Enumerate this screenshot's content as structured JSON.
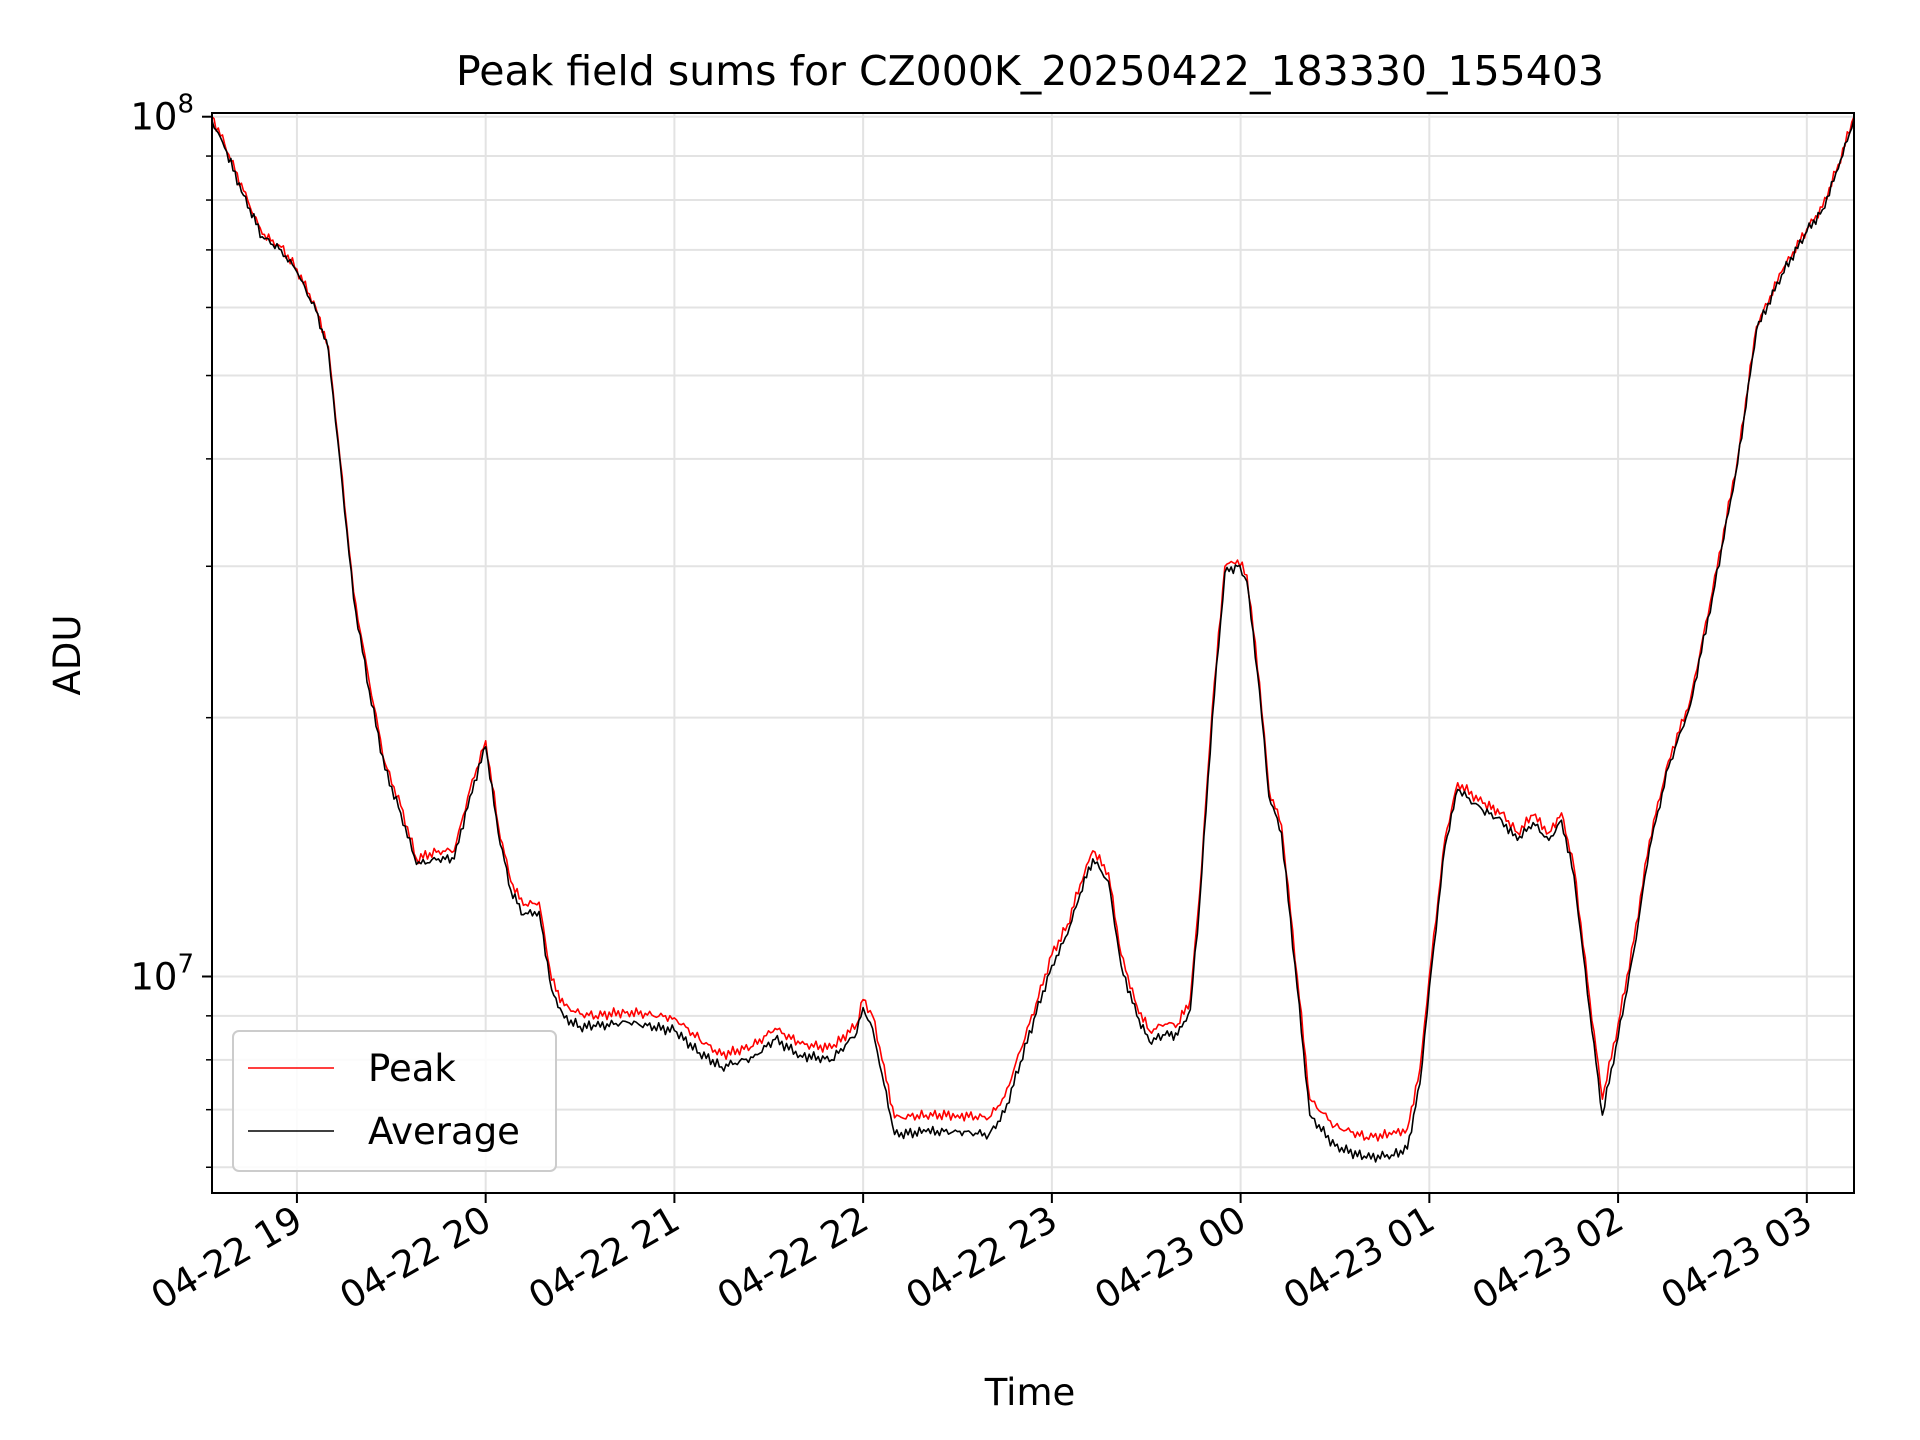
{
  "chart_data": {
    "type": "line",
    "title": "Peak field sums for CZ000K_20250422_183330_155403",
    "xlabel": "Time",
    "ylabel": "ADU",
    "yscale": "log",
    "ylim": [
      5600000,
      101000000
    ],
    "xlim": [
      "2025-04-22 18:33",
      "2025-04-23 03:15"
    ],
    "x_ticks": [
      {
        "t": "2025-04-22 19:00",
        "label": "04-22 19"
      },
      {
        "t": "2025-04-22 20:00",
        "label": "04-22 20"
      },
      {
        "t": "2025-04-22 21:00",
        "label": "04-22 21"
      },
      {
        "t": "2025-04-22 22:00",
        "label": "04-22 22"
      },
      {
        "t": "2025-04-22 23:00",
        "label": "04-22 23"
      },
      {
        "t": "2025-04-23 00:00",
        "label": "04-23 00"
      },
      {
        "t": "2025-04-23 01:00",
        "label": "04-23 01"
      },
      {
        "t": "2025-04-23 02:00",
        "label": "04-23 02"
      },
      {
        "t": "2025-04-23 03:00",
        "label": "04-23 03"
      }
    ],
    "y_ticks": [
      {
        "value": 10000000,
        "base": "10",
        "exp": "7"
      },
      {
        "value": 100000000,
        "base": "10",
        "exp": "8"
      }
    ],
    "grid": true,
    "legend": "lower-left",
    "series": [
      {
        "name": "Peak",
        "color": "#ff0000",
        "x": [
          "2025-04-22 18:33",
          "2025-04-22 18:37",
          "2025-04-22 18:43",
          "2025-04-22 18:49",
          "2025-04-22 18:55",
          "2025-04-22 19:00",
          "2025-04-22 19:06",
          "2025-04-22 19:10",
          "2025-04-22 19:13",
          "2025-04-22 19:18",
          "2025-04-22 19:23",
          "2025-04-22 19:28",
          "2025-04-22 19:33",
          "2025-04-22 19:38",
          "2025-04-22 19:45",
          "2025-04-22 19:50",
          "2025-04-22 19:55",
          "2025-04-22 20:00",
          "2025-04-22 20:04",
          "2025-04-22 20:08",
          "2025-04-22 20:12",
          "2025-04-22 20:17",
          "2025-04-22 20:21",
          "2025-04-22 20:25",
          "2025-04-22 20:30",
          "2025-04-22 20:35",
          "2025-04-22 20:45",
          "2025-04-22 21:00",
          "2025-04-22 21:08",
          "2025-04-22 21:15",
          "2025-04-22 21:25",
          "2025-04-22 21:32",
          "2025-04-22 21:40",
          "2025-04-22 21:50",
          "2025-04-22 21:58",
          "2025-04-22 22:00",
          "2025-04-22 22:03",
          "2025-04-22 22:06",
          "2025-04-22 22:10",
          "2025-04-22 22:20",
          "2025-04-22 22:30",
          "2025-04-22 22:40",
          "2025-04-22 22:45",
          "2025-04-22 22:50",
          "2025-04-22 22:55",
          "2025-04-22 23:00",
          "2025-04-22 23:05",
          "2025-04-22 23:09",
          "2025-04-22 23:13",
          "2025-04-22 23:18",
          "2025-04-22 23:22",
          "2025-04-22 23:27",
          "2025-04-22 23:31",
          "2025-04-22 23:36",
          "2025-04-22 23:40",
          "2025-04-22 23:44",
          "2025-04-22 23:47",
          "2025-04-22 23:51",
          "2025-04-22 23:55",
          "2025-04-22 23:59",
          "2025-04-23 00:02",
          "2025-04-23 00:06",
          "2025-04-23 00:09",
          "2025-04-23 00:13",
          "2025-04-23 00:18",
          "2025-04-23 00:22",
          "2025-04-23 00:30",
          "2025-04-23 00:40",
          "2025-04-23 00:48",
          "2025-04-23 00:53",
          "2025-04-23 00:57",
          "2025-04-23 01:00",
          "2025-04-23 01:05",
          "2025-04-23 01:09",
          "2025-04-23 01:17",
          "2025-04-23 01:23",
          "2025-04-23 01:28",
          "2025-04-23 01:33",
          "2025-04-23 01:38",
          "2025-04-23 01:42",
          "2025-04-23 01:46",
          "2025-04-23 01:51",
          "2025-04-23 01:55",
          "2025-04-23 02:00",
          "2025-04-23 02:05",
          "2025-04-23 02:10",
          "2025-04-23 02:16",
          "2025-04-23 02:23",
          "2025-04-23 02:30",
          "2025-04-23 02:38",
          "2025-04-23 02:44",
          "2025-04-23 02:52",
          "2025-04-23 03:00",
          "2025-04-23 03:05",
          "2025-04-23 03:10",
          "2025-04-23 03:15"
        ],
        "values": [
          100000000,
          93000000,
          82000000,
          73000000,
          70500000,
          66500000,
          60000000,
          54000000,
          42500000,
          28000000,
          22000000,
          17700000,
          15800000,
          13700000,
          14000000,
          14000000,
          16500000,
          18800000,
          15000000,
          12900000,
          12100000,
          12200000,
          9900000,
          9250000,
          9050000,
          9000000,
          9100000,
          8950000,
          8450000,
          8100000,
          8300000,
          8700000,
          8350000,
          8250000,
          8800000,
          9400000,
          9000000,
          8000000,
          6850000,
          6900000,
          6900000,
          6850000,
          7250000,
          8200000,
          9300000,
          10600000,
          11500000,
          12800000,
          14000000,
          13200000,
          10600000,
          9250000,
          8650000,
          8800000,
          8800000,
          9400000,
          12500000,
          20500000,
          30000000,
          30500000,
          29300000,
          22000000,
          16500000,
          15000000,
          10000000,
          7200000,
          6700000,
          6500000,
          6550000,
          6650000,
          7800000,
          10000000,
          14500000,
          16800000,
          15900000,
          15500000,
          14700000,
          15400000,
          14700000,
          15500000,
          13400000,
          9400000,
          7200000,
          8800000,
          11000000,
          14400000,
          17800000,
          21000000,
          28000000,
          40000000,
          57000000,
          66000000,
          74000000,
          78500000,
          88000000,
          100000000
        ]
      },
      {
        "name": "Average",
        "color": "#000000",
        "x": [
          "2025-04-22 18:33",
          "2025-04-22 18:37",
          "2025-04-22 18:43",
          "2025-04-22 18:49",
          "2025-04-22 18:55",
          "2025-04-22 19:00",
          "2025-04-22 19:06",
          "2025-04-22 19:10",
          "2025-04-22 19:13",
          "2025-04-22 19:18",
          "2025-04-22 19:23",
          "2025-04-22 19:28",
          "2025-04-22 19:33",
          "2025-04-22 19:38",
          "2025-04-22 19:45",
          "2025-04-22 19:50",
          "2025-04-22 19:55",
          "2025-04-22 20:00",
          "2025-04-22 20:04",
          "2025-04-22 20:08",
          "2025-04-22 20:12",
          "2025-04-22 20:17",
          "2025-04-22 20:21",
          "2025-04-22 20:25",
          "2025-04-22 20:30",
          "2025-04-22 20:35",
          "2025-04-22 20:45",
          "2025-04-22 21:00",
          "2025-04-22 21:08",
          "2025-04-22 21:15",
          "2025-04-22 21:25",
          "2025-04-22 21:32",
          "2025-04-22 21:40",
          "2025-04-22 21:50",
          "2025-04-22 21:58",
          "2025-04-22 22:00",
          "2025-04-22 22:03",
          "2025-04-22 22:06",
          "2025-04-22 22:10",
          "2025-04-22 22:20",
          "2025-04-22 22:30",
          "2025-04-22 22:40",
          "2025-04-22 22:45",
          "2025-04-22 22:50",
          "2025-04-22 22:55",
          "2025-04-22 23:00",
          "2025-04-22 23:05",
          "2025-04-22 23:09",
          "2025-04-22 23:13",
          "2025-04-22 23:18",
          "2025-04-22 23:22",
          "2025-04-22 23:27",
          "2025-04-22 23:31",
          "2025-04-22 23:36",
          "2025-04-22 23:40",
          "2025-04-22 23:44",
          "2025-04-22 23:47",
          "2025-04-22 23:51",
          "2025-04-22 23:55",
          "2025-04-22 23:59",
          "2025-04-23 00:02",
          "2025-04-23 00:06",
          "2025-04-23 00:09",
          "2025-04-23 00:13",
          "2025-04-23 00:18",
          "2025-04-23 00:22",
          "2025-04-23 00:30",
          "2025-04-23 00:40",
          "2025-04-23 00:48",
          "2025-04-23 00:53",
          "2025-04-23 00:57",
          "2025-04-23 01:00",
          "2025-04-23 01:05",
          "2025-04-23 01:09",
          "2025-04-23 01:17",
          "2025-04-23 01:23",
          "2025-04-23 01:28",
          "2025-04-23 01:33",
          "2025-04-23 01:38",
          "2025-04-23 01:42",
          "2025-04-23 01:46",
          "2025-04-23 01:51",
          "2025-04-23 01:55",
          "2025-04-23 02:00",
          "2025-04-23 02:05",
          "2025-04-23 02:10",
          "2025-04-23 02:16",
          "2025-04-23 02:23",
          "2025-04-23 02:30",
          "2025-04-23 02:38",
          "2025-04-23 02:44",
          "2025-04-23 02:52",
          "2025-04-23 03:00",
          "2025-04-23 03:05",
          "2025-04-23 03:10",
          "2025-04-23 03:15"
        ],
        "values": [
          99000000,
          92000000,
          81000000,
          72500000,
          70000000,
          66000000,
          59500000,
          53500000,
          42000000,
          27500000,
          21500000,
          17400000,
          15500000,
          13500000,
          13700000,
          13700000,
          16200000,
          18500000,
          14700000,
          12600000,
          11800000,
          11900000,
          9650000,
          8950000,
          8750000,
          8750000,
          8850000,
          8650000,
          8150000,
          7850000,
          8050000,
          8450000,
          8100000,
          8000000,
          8600000,
          9200000,
          8700000,
          7700000,
          6550000,
          6600000,
          6600000,
          6550000,
          6950000,
          7950000,
          9050000,
          10300000,
          11200000,
          12500000,
          13700000,
          12900000,
          10300000,
          9000000,
          8400000,
          8550000,
          8550000,
          9150000,
          12200000,
          20000000,
          29500000,
          30000000,
          28800000,
          21500000,
          16200000,
          14700000,
          9700000,
          6900000,
          6350000,
          6150000,
          6200000,
          6300000,
          7500000,
          9700000,
          14200000,
          16500000,
          15600000,
          15200000,
          14400000,
          15100000,
          14400000,
          15200000,
          13100000,
          9100000,
          6900000,
          8500000,
          10700000,
          14100000,
          17500000,
          20700000,
          27600000,
          39500000,
          56500000,
          65500000,
          73500000,
          78000000,
          87000000,
          99500000
        ]
      }
    ]
  }
}
